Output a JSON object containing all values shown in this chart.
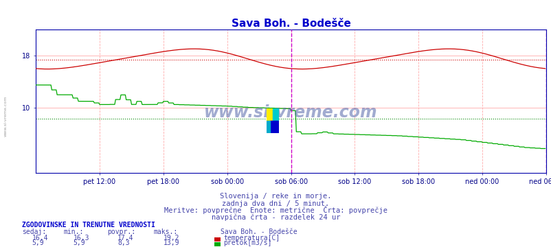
{
  "title": "Sava Boh. - Bodešče",
  "title_color": "#0000cc",
  "bg_color": "#ffffff",
  "plot_bg_color": "#ffffff",
  "temp_color": "#cc0000",
  "flow_color": "#00aa00",
  "x_labels": [
    "pet 12:00",
    "pet 18:00",
    "sob 00:00",
    "sob 06:00",
    "sob 12:00",
    "sob 18:00",
    "ned 00:00",
    "ned 06:00"
  ],
  "temp_avg": 17.4,
  "flow_avg": 8.3,
  "temp_min": 16.3,
  "temp_max": 19.2,
  "flow_min": 5.9,
  "flow_max": 13.9,
  "temp_current": 16.4,
  "flow_current": 5.9,
  "y_ticks": [
    10,
    18
  ],
  "subtitle1": "Slovenija / reke in morje.",
  "subtitle2": "zadnja dva dni / 5 minut.",
  "subtitle3": "Meritve: povprečne  Enote: metrične  Črta: povprečje",
  "subtitle4": "navpična črta - razdelek 24 ur",
  "text_color": "#4444aa",
  "watermark": "www.si-vreme.com",
  "table_header": "ZGODOVINSKE IN TRENUTNE VREDNOSTI",
  "col_headers": [
    "sedaj:",
    "min.:",
    "povpr.:",
    "maks.:"
  ],
  "station_name": "Sava Boh. - Bodešče",
  "legend1": "temperatura[C]",
  "legend2": "pretok[m3/s]"
}
